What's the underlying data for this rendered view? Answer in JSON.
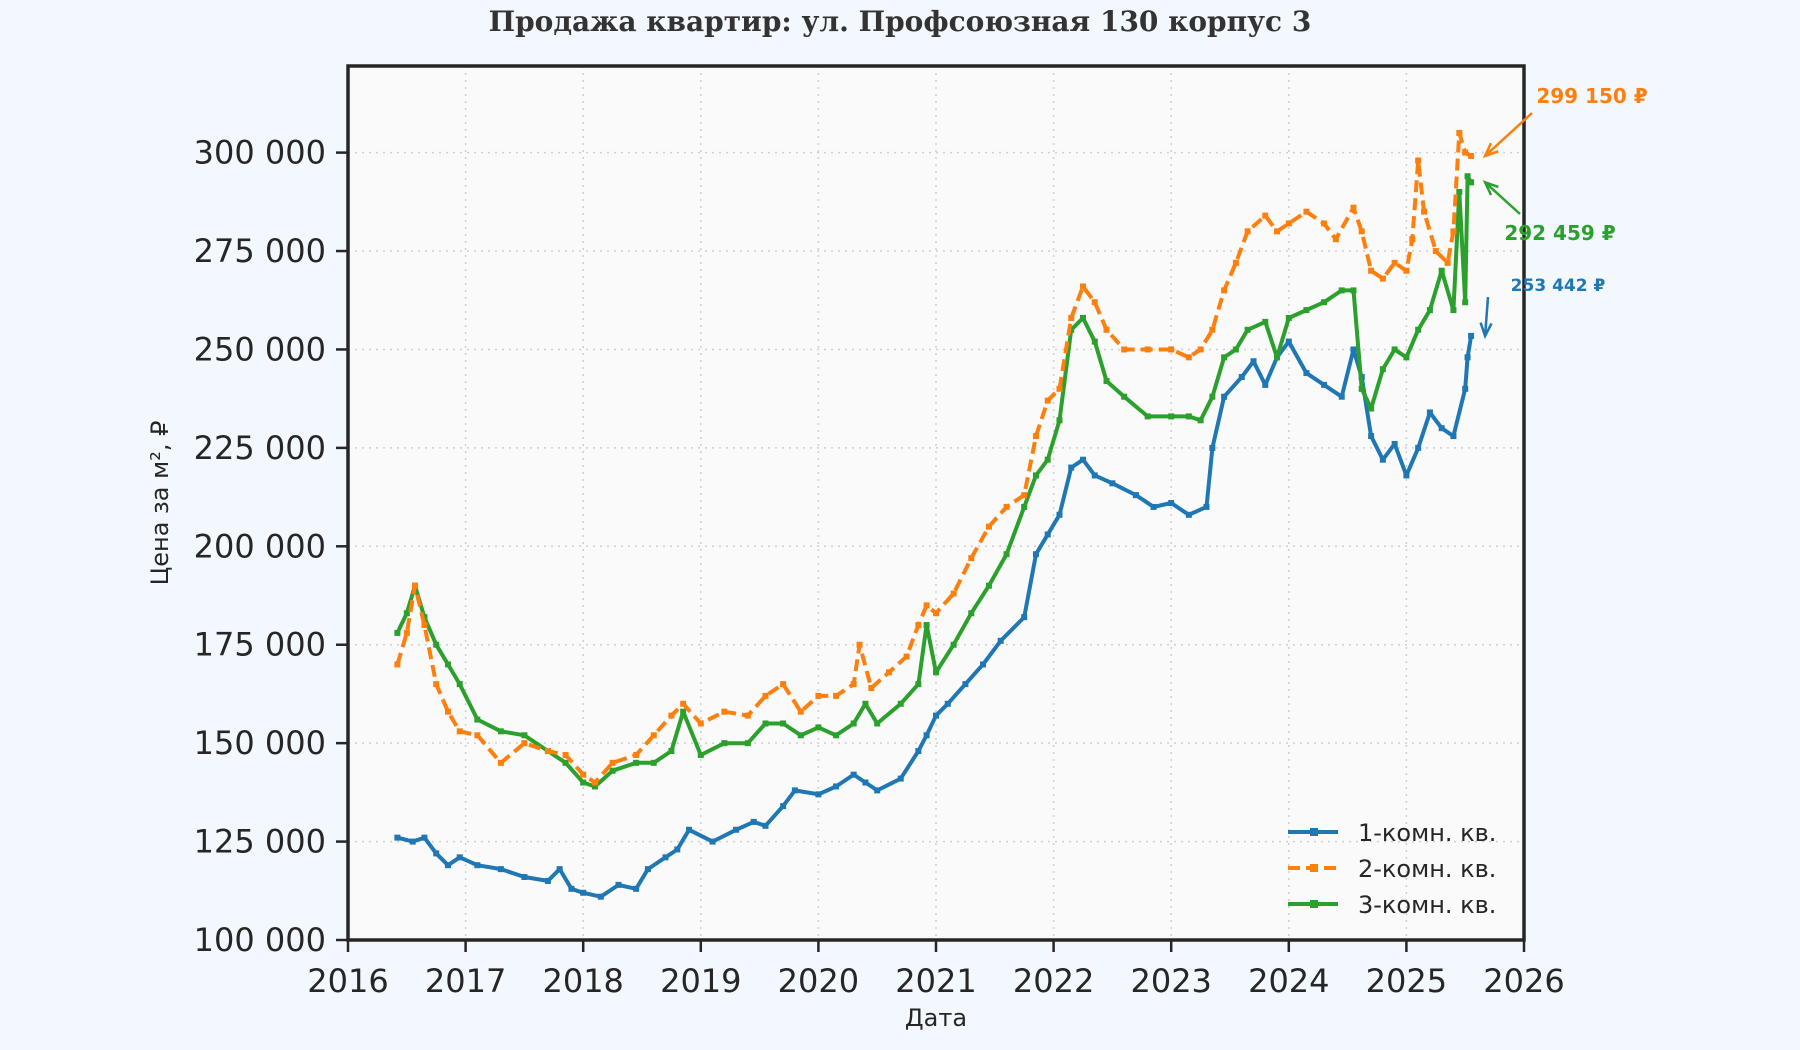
{
  "chart_data": {
    "type": "line",
    "title": "Продажа квартир: ул. Профсоюзная 130 корпус 3",
    "xlabel": "Дата",
    "ylabel": "Цена за м², ₽",
    "xlim": [
      2016,
      2026
    ],
    "ylim": [
      100000,
      322000
    ],
    "x_ticks": [
      "2016",
      "2017",
      "2018",
      "2019",
      "2020",
      "2021",
      "2022",
      "2023",
      "2024",
      "2025",
      "2026"
    ],
    "y_ticks": [
      "100 000",
      "125 000",
      "150 000",
      "175 000",
      "200 000",
      "225 000",
      "250 000",
      "275 000",
      "300 000"
    ],
    "y_tick_values": [
      100000,
      125000,
      150000,
      175000,
      200000,
      225000,
      250000,
      275000,
      300000
    ],
    "grid": true,
    "legend_position": "lower-right",
    "series": [
      {
        "name": "1-комн. кв.",
        "color": "#1f77b4",
        "style": "solid",
        "x": [
          2016.42,
          2016.55,
          2016.65,
          2016.75,
          2016.85,
          2016.95,
          2017.1,
          2017.3,
          2017.5,
          2017.7,
          2017.8,
          2017.9,
          2018.0,
          2018.15,
          2018.3,
          2018.45,
          2018.55,
          2018.7,
          2018.8,
          2018.9,
          2019.1,
          2019.3,
          2019.45,
          2019.55,
          2019.7,
          2019.8,
          2020.0,
          2020.15,
          2020.3,
          2020.4,
          2020.5,
          2020.7,
          2020.85,
          2020.92,
          2021.0,
          2021.1,
          2021.25,
          2021.4,
          2021.55,
          2021.75,
          2021.85,
          2021.95,
          2022.05,
          2022.15,
          2022.25,
          2022.35,
          2022.5,
          2022.7,
          2022.85,
          2023.0,
          2023.15,
          2023.3,
          2023.35,
          2023.45,
          2023.6,
          2023.7,
          2023.8,
          2023.9,
          2024.0,
          2024.15,
          2024.3,
          2024.45,
          2024.55,
          2024.62,
          2024.7,
          2024.8,
          2024.9,
          2025.0,
          2025.1,
          2025.2,
          2025.3,
          2025.4,
          2025.5,
          2025.52,
          2025.55
        ],
        "values": [
          126000,
          125000,
          126000,
          122000,
          119000,
          121000,
          119000,
          118000,
          116000,
          115000,
          118000,
          113000,
          112000,
          111000,
          114000,
          113000,
          118000,
          121000,
          123000,
          128000,
          125000,
          128000,
          130000,
          129000,
          134000,
          138000,
          137000,
          139000,
          142000,
          140000,
          138000,
          141000,
          148000,
          152000,
          157000,
          160000,
          165000,
          170000,
          176000,
          182000,
          198000,
          203000,
          208000,
          220000,
          222000,
          218000,
          216000,
          213000,
          210000,
          211000,
          208000,
          210000,
          225000,
          238000,
          243000,
          247000,
          241000,
          248000,
          252000,
          244000,
          241000,
          238000,
          250000,
          243000,
          228000,
          222000,
          226000,
          218000,
          225000,
          234000,
          230000,
          228000,
          240000,
          248000,
          253442
        ]
      },
      {
        "name": "2-комн. кв.",
        "color": "#ff7f0e",
        "style": "dashed",
        "x": [
          2016.42,
          2016.5,
          2016.57,
          2016.65,
          2016.75,
          2016.85,
          2016.95,
          2017.1,
          2017.3,
          2017.5,
          2017.7,
          2017.85,
          2018.0,
          2018.1,
          2018.25,
          2018.45,
          2018.6,
          2018.75,
          2018.85,
          2019.0,
          2019.2,
          2019.4,
          2019.55,
          2019.7,
          2019.85,
          2020.0,
          2020.15,
          2020.3,
          2020.35,
          2020.45,
          2020.6,
          2020.75,
          2020.85,
          2020.92,
          2021.0,
          2021.15,
          2021.3,
          2021.45,
          2021.6,
          2021.75,
          2021.85,
          2021.95,
          2022.05,
          2022.15,
          2022.25,
          2022.35,
          2022.45,
          2022.6,
          2022.8,
          2023.0,
          2023.15,
          2023.25,
          2023.35,
          2023.45,
          2023.55,
          2023.65,
          2023.8,
          2023.9,
          2024.0,
          2024.15,
          2024.3,
          2024.4,
          2024.55,
          2024.62,
          2024.7,
          2024.8,
          2024.9,
          2025.0,
          2025.05,
          2025.1,
          2025.15,
          2025.25,
          2025.35,
          2025.4,
          2025.45,
          2025.5,
          2025.55
        ],
        "values": [
          170000,
          178000,
          190000,
          180000,
          165000,
          158000,
          153000,
          152000,
          145000,
          150000,
          148000,
          147000,
          142000,
          140000,
          145000,
          147000,
          152000,
          157000,
          160000,
          155000,
          158000,
          157000,
          162000,
          165000,
          158000,
          162000,
          162000,
          165000,
          175000,
          164000,
          168000,
          172000,
          180000,
          185000,
          183000,
          188000,
          197000,
          205000,
          210000,
          213000,
          228000,
          237000,
          240000,
          258000,
          266000,
          262000,
          255000,
          250000,
          250000,
          250000,
          248000,
          250000,
          255000,
          265000,
          272000,
          280000,
          284000,
          280000,
          282000,
          285000,
          282000,
          278000,
          286000,
          280000,
          270000,
          268000,
          272000,
          270000,
          278000,
          298000,
          285000,
          275000,
          272000,
          280000,
          305000,
          300000,
          299150
        ]
      },
      {
        "name": "3-комн. кв.",
        "color": "#2ca02c",
        "style": "solid",
        "x": [
          2016.42,
          2016.5,
          2016.57,
          2016.65,
          2016.75,
          2016.85,
          2016.95,
          2017.1,
          2017.3,
          2017.5,
          2017.7,
          2017.85,
          2018.0,
          2018.1,
          2018.25,
          2018.45,
          2018.6,
          2018.75,
          2018.85,
          2019.0,
          2019.2,
          2019.4,
          2019.55,
          2019.7,
          2019.85,
          2020.0,
          2020.15,
          2020.3,
          2020.4,
          2020.5,
          2020.7,
          2020.85,
          2020.92,
          2021.0,
          2021.15,
          2021.3,
          2021.45,
          2021.6,
          2021.75,
          2021.85,
          2021.95,
          2022.05,
          2022.15,
          2022.25,
          2022.35,
          2022.45,
          2022.6,
          2022.8,
          2023.0,
          2023.15,
          2023.25,
          2023.35,
          2023.45,
          2023.55,
          2023.65,
          2023.8,
          2023.9,
          2024.0,
          2024.15,
          2024.3,
          2024.45,
          2024.55,
          2024.62,
          2024.7,
          2024.8,
          2024.9,
          2025.0,
          2025.1,
          2025.2,
          2025.3,
          2025.4,
          2025.45,
          2025.5,
          2025.52,
          2025.55
        ],
        "values": [
          178000,
          183000,
          190000,
          182000,
          175000,
          170000,
          165000,
          156000,
          153000,
          152000,
          148000,
          145000,
          140000,
          139000,
          143000,
          145000,
          145000,
          148000,
          158000,
          147000,
          150000,
          150000,
          155000,
          155000,
          152000,
          154000,
          152000,
          155000,
          160000,
          155000,
          160000,
          165000,
          180000,
          168000,
          175000,
          183000,
          190000,
          198000,
          210000,
          218000,
          222000,
          232000,
          255000,
          258000,
          252000,
          242000,
          238000,
          233000,
          233000,
          233000,
          232000,
          238000,
          248000,
          250000,
          255000,
          257000,
          248000,
          258000,
          260000,
          262000,
          265000,
          265000,
          240000,
          235000,
          245000,
          250000,
          248000,
          255000,
          260000,
          270000,
          260000,
          290000,
          262000,
          294000,
          292459
        ]
      }
    ],
    "annotations": [
      {
        "text": "299 150 ₽",
        "color": "#ff7f0e",
        "x": 2025.55,
        "y": 299150
      },
      {
        "text": "292 459 ₽",
        "color": "#2ca02c",
        "x": 2025.55,
        "y": 292459
      },
      {
        "text": "253 442 ₽",
        "color": "#1f77b4",
        "x": 2025.55,
        "y": 253442
      }
    ]
  }
}
